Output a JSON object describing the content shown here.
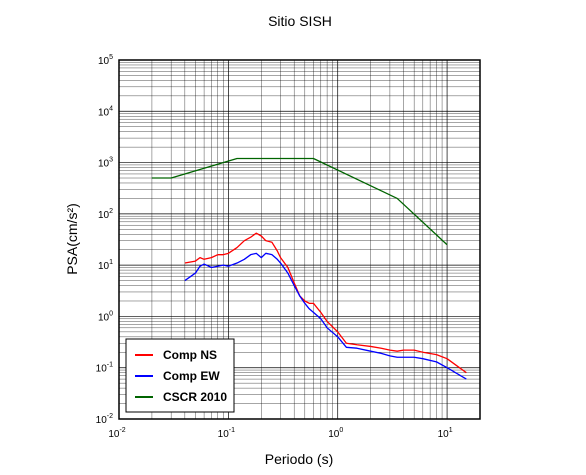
{
  "chart_data": {
    "type": "line",
    "title": "Sitio SISH",
    "xlabel": "Periodo (s)",
    "ylabel": "PSA(cm/s²)",
    "xscale": "log",
    "yscale": "log",
    "xlim": [
      0.01,
      20
    ],
    "ylim": [
      0.01,
      100000
    ],
    "grid": true,
    "legend_position": "bottom-left",
    "x_ticks": [
      {
        "base": "10",
        "exp": "-2"
      },
      {
        "base": "10",
        "exp": "-1"
      },
      {
        "base": "10",
        "exp": "0"
      },
      {
        "base": "10",
        "exp": "1"
      }
    ],
    "y_ticks": [
      {
        "base": "10",
        "exp": "-2"
      },
      {
        "base": "10",
        "exp": "-1"
      },
      {
        "base": "10",
        "exp": "0"
      },
      {
        "base": "10",
        "exp": "1"
      },
      {
        "base": "10",
        "exp": "2"
      },
      {
        "base": "10",
        "exp": "3"
      },
      {
        "base": "10",
        "exp": "4"
      },
      {
        "base": "10",
        "exp": "5"
      }
    ],
    "series": [
      {
        "name": "Comp NS",
        "color": "#ff0000",
        "x": [
          0.04,
          0.05,
          0.055,
          0.06,
          0.07,
          0.08,
          0.09,
          0.1,
          0.12,
          0.14,
          0.16,
          0.18,
          0.2,
          0.22,
          0.25,
          0.28,
          0.3,
          0.35,
          0.4,
          0.45,
          0.5,
          0.55,
          0.6,
          0.7,
          0.8,
          1.0,
          1.2,
          1.5,
          2.0,
          2.5,
          3.0,
          3.5,
          4.0,
          5.0,
          6.0,
          8.0,
          10.0,
          15.0
        ],
        "y": [
          11,
          12,
          14,
          13,
          14,
          16,
          16,
          17,
          22,
          30,
          35,
          42,
          37,
          30,
          28,
          19,
          14,
          9,
          4.5,
          2.5,
          2.0,
          1.8,
          1.8,
          1.2,
          0.8,
          0.5,
          0.3,
          0.28,
          0.26,
          0.24,
          0.22,
          0.21,
          0.22,
          0.22,
          0.2,
          0.18,
          0.15,
          0.08
        ]
      },
      {
        "name": "Comp EW",
        "color": "#0000ff",
        "x": [
          0.04,
          0.05,
          0.055,
          0.06,
          0.07,
          0.08,
          0.09,
          0.1,
          0.12,
          0.14,
          0.16,
          0.18,
          0.2,
          0.22,
          0.25,
          0.28,
          0.3,
          0.35,
          0.4,
          0.45,
          0.5,
          0.55,
          0.6,
          0.7,
          0.8,
          1.0,
          1.2,
          1.5,
          2.0,
          2.5,
          3.0,
          3.5,
          4.0,
          5.0,
          6.0,
          8.0,
          10.0,
          15.0
        ],
        "y": [
          5,
          7,
          9.5,
          10.5,
          9,
          9.5,
          10,
          9.5,
          11,
          13,
          16,
          17,
          14,
          17,
          16,
          13,
          11,
          7,
          4,
          2.5,
          1.8,
          1.4,
          1.2,
          0.9,
          0.6,
          0.4,
          0.25,
          0.24,
          0.21,
          0.19,
          0.17,
          0.16,
          0.16,
          0.16,
          0.15,
          0.13,
          0.1,
          0.06
        ]
      },
      {
        "name": "CSCR 2010",
        "color": "#006400",
        "x": [
          0.02,
          0.03,
          0.12,
          0.6,
          3.5,
          10.0
        ],
        "y": [
          500,
          500,
          1200,
          1200,
          200,
          25
        ]
      }
    ]
  }
}
